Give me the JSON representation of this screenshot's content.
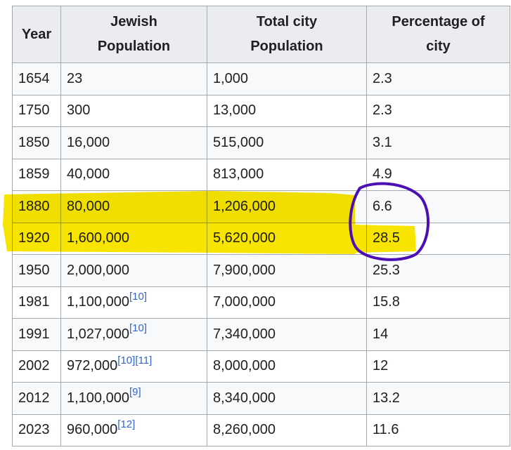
{
  "table": {
    "headers": [
      "Year",
      "Jewish Population",
      "Total city Population",
      "Percentage of city"
    ],
    "rows": [
      {
        "year": "1654",
        "jewish": "23",
        "refs": [],
        "total": "1,000",
        "pct": "2.3"
      },
      {
        "year": "1750",
        "jewish": "300",
        "refs": [],
        "total": "13,000",
        "pct": "2.3"
      },
      {
        "year": "1850",
        "jewish": "16,000",
        "refs": [],
        "total": "515,000",
        "pct": "3.1"
      },
      {
        "year": "1859",
        "jewish": "40,000",
        "refs": [],
        "total": "813,000",
        "pct": "4.9"
      },
      {
        "year": "1880",
        "jewish": "80,000",
        "refs": [],
        "total": "1,206,000",
        "pct": "6.6"
      },
      {
        "year": "1920",
        "jewish": "1,600,000",
        "refs": [],
        "total": "5,620,000",
        "pct": "28.5"
      },
      {
        "year": "1950",
        "jewish": "2,000,000",
        "refs": [],
        "total": "7,900,000",
        "pct": "25.3"
      },
      {
        "year": "1981",
        "jewish": "1,100,000",
        "refs": [
          "[10]"
        ],
        "total": "7,000,000",
        "pct": "15.8"
      },
      {
        "year": "1991",
        "jewish": "1,027,000",
        "refs": [
          "[10]"
        ],
        "total": "7,340,000",
        "pct": "14"
      },
      {
        "year": "2002",
        "jewish": "972,000",
        "refs": [
          "[10]",
          "[11]"
        ],
        "total": "8,000,000",
        "pct": "12"
      },
      {
        "year": "2012",
        "jewish": "1,100,000",
        "refs": [
          "[9]"
        ],
        "total": "8,340,000",
        "pct": "13.2"
      },
      {
        "year": "2023",
        "jewish": "960,000",
        "refs": [
          "[12]"
        ],
        "total": "8,260,000",
        "pct": "11.6"
      }
    ]
  },
  "annotations": {
    "highlight_color": "#f7e400",
    "circle_color": "#4b0fb3"
  }
}
